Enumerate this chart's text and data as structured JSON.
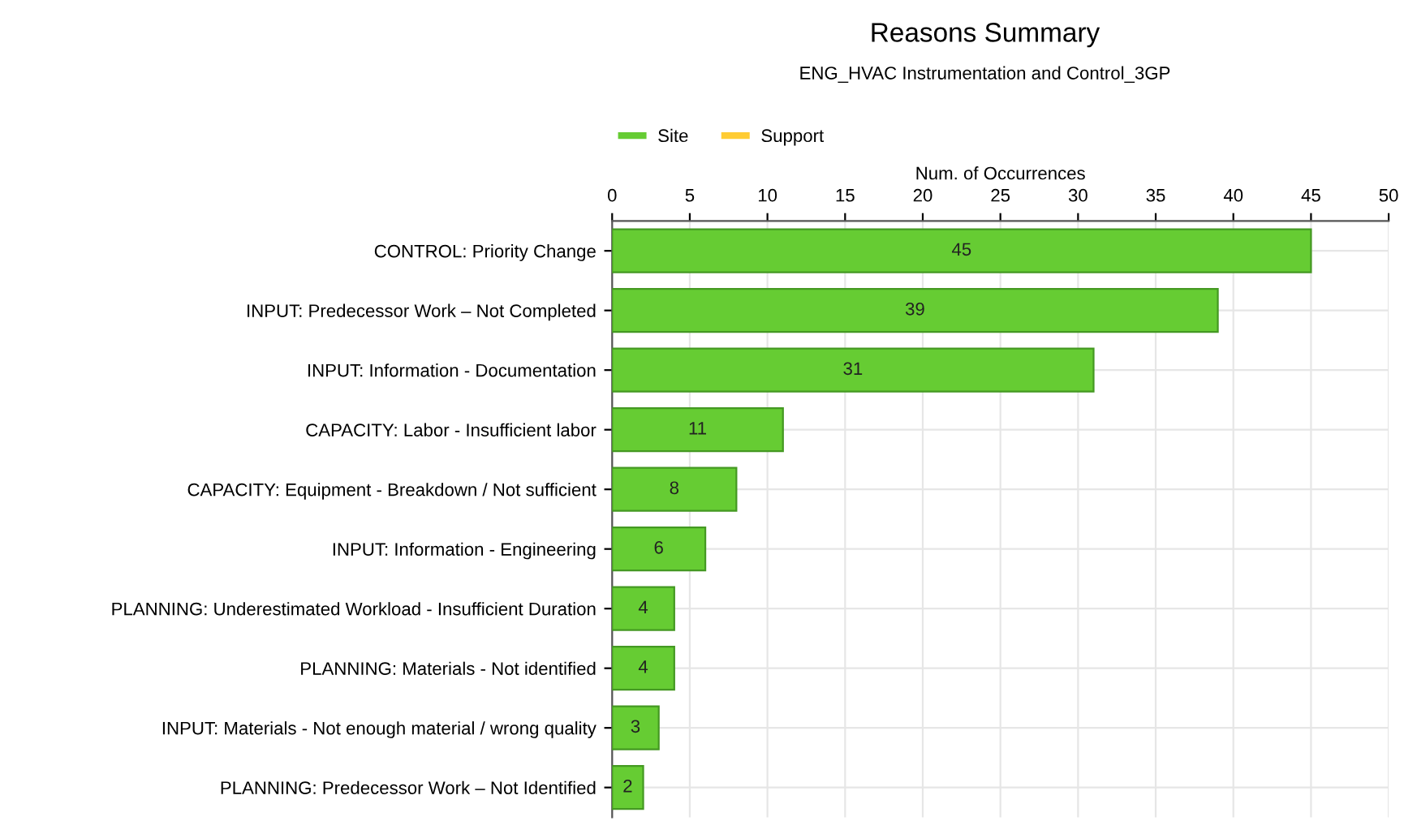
{
  "chart_data": {
    "type": "bar",
    "orientation": "horizontal",
    "title": "Reasons Summary",
    "subtitle": "ENG_HVAC Instrumentation and Control_3GP",
    "xlabel": "Num. of Occurrences",
    "categories": [
      "CONTROL: Priority Change",
      "INPUT: Predecessor Work – Not Completed",
      "INPUT: Information - Documentation",
      "CAPACITY: Labor - Insufficient labor",
      "CAPACITY: Equipment - Breakdown / Not sufficient",
      "INPUT: Information - Engineering",
      "PLANNING: Underestimated Workload - Insufficient Duration",
      "PLANNING: Materials - Not identified",
      "INPUT: Materials - Not enough material / wrong quality",
      "PLANNING: Predecessor Work – Not Identified"
    ],
    "series": [
      {
        "name": "Site",
        "color": "#66cc33",
        "values": [
          45,
          39,
          31,
          11,
          8,
          6,
          4,
          4,
          3,
          2
        ]
      },
      {
        "name": "Support",
        "color": "#ffcc33",
        "values": [
          null,
          null,
          null,
          null,
          null,
          null,
          null,
          null,
          null,
          null
        ]
      }
    ],
    "xlim": [
      0,
      50
    ],
    "xticks": [
      0,
      5,
      10,
      15,
      20,
      25,
      30,
      35,
      40,
      45,
      50
    ],
    "grid": true,
    "legend": "top",
    "data_labels": true
  }
}
